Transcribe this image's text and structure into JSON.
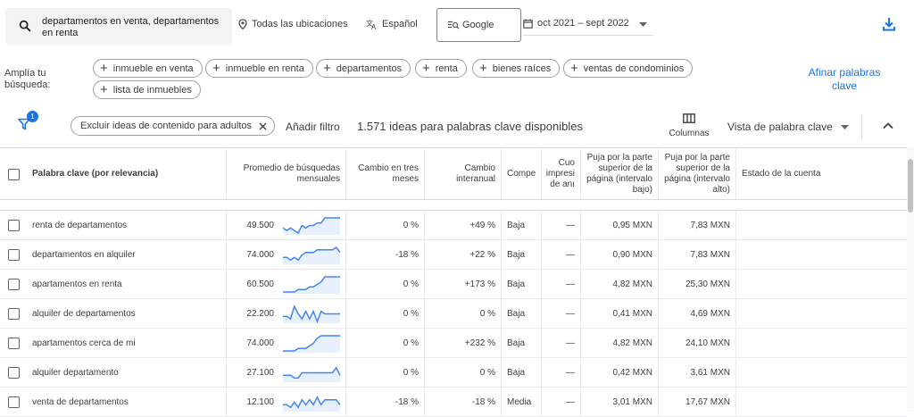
{
  "top": {
    "search_text": "departamentos en venta, departamentos en renta",
    "location": "Todas las ubicaciones",
    "language": "Español",
    "network": "Google",
    "date_range": "oct 2021 – sept 2022"
  },
  "broaden": {
    "label": "Amplía tu búsqueda:",
    "chips": [
      "inmueble en venta",
      "inmueble en renta",
      "departamentos",
      "renta",
      "bienes raíces",
      "ventas de condominios",
      "lista de inmuebles"
    ],
    "refine": "Afinar palabras clave"
  },
  "filterbar": {
    "badge": "1",
    "exclude_chip": "Excluir ideas de contenido para adultos",
    "add_filter": "Añadir filtro",
    "ideas_count": "1.571 ideas para palabras clave disponibles",
    "columns": "Columnas",
    "view": "Vista de palabra clave"
  },
  "table": {
    "headers": {
      "keyword": "Palabra clave (por relevancia)",
      "avg": "Promedio de búsquedas mensuales",
      "three": "Cambio en tres meses",
      "yoy": "Cambio interanual",
      "comp": "Compe",
      "share": "Cuo impresi de anı",
      "low": "Puja por la parte superior de la página (intervalo bajo)",
      "high": "Puja por la parte superior de la página (intervalo alto)",
      "status": "Estado de la cuenta"
    },
    "rows": [
      {
        "keyword": "renta de departamentos",
        "avg": "49.500",
        "three": "0 %",
        "yoy": "+49 %",
        "comp": "Baja",
        "share": "—",
        "low": "0,95 MXN",
        "high": "7,83 MXN",
        "trend": [
          2,
          1,
          2,
          1,
          0,
          3,
          2,
          3,
          3,
          4,
          4,
          6,
          6,
          6,
          6,
          6
        ]
      },
      {
        "keyword": "departamentos en alquiler",
        "avg": "74.000",
        "three": "-18 %",
        "yoy": "+22 %",
        "comp": "Baja",
        "share": "—",
        "low": "0,90 MXN",
        "high": "7,83 MXN",
        "trend": [
          2,
          2,
          1,
          2,
          1,
          3,
          4,
          4,
          4,
          5,
          5,
          5,
          5,
          5,
          6,
          4
        ]
      },
      {
        "keyword": "apartamentos en renta",
        "avg": "60.500",
        "three": "0 %",
        "yoy": "+173 %",
        "comp": "Baja",
        "share": "—",
        "low": "4,82 MXN",
        "high": "25,30 MXN",
        "trend": [
          0,
          0,
          0,
          0,
          1,
          1,
          1,
          2,
          2,
          3,
          4,
          6,
          6,
          6,
          6,
          6
        ]
      },
      {
        "keyword": "alquiler de departamentos",
        "avg": "22.200",
        "three": "0 %",
        "yoy": "0 %",
        "comp": "Baja",
        "share": "—",
        "low": "0,41 MXN",
        "high": "4,69 MXN",
        "trend": [
          2,
          2,
          1,
          6,
          3,
          1,
          4,
          1,
          4,
          0,
          4,
          3,
          3,
          3,
          3,
          3
        ]
      },
      {
        "keyword": "apartamentos cerca de mi",
        "avg": "74.000",
        "three": "0 %",
        "yoy": "+232 %",
        "comp": "Baja",
        "share": "—",
        "low": "4,82 MXN",
        "high": "24,10 MXN",
        "trend": [
          0,
          0,
          0,
          0,
          1,
          1,
          1,
          2,
          3,
          5,
          6,
          6,
          6,
          6,
          6,
          6
        ]
      },
      {
        "keyword": "alquiler departamento",
        "avg": "27.100",
        "three": "0 %",
        "yoy": "0 %",
        "comp": "Baja",
        "share": "—",
        "low": "0,42 MXN",
        "high": "3,61 MXN",
        "trend": [
          2,
          2,
          2,
          1,
          1,
          3,
          3,
          3,
          3,
          3,
          3,
          3,
          3,
          3,
          5,
          2
        ]
      },
      {
        "keyword": "venta de departamentos",
        "avg": "12.100",
        "three": "-18 %",
        "yoy": "-18 %",
        "comp": "Media",
        "share": "—",
        "low": "3,01 MXN",
        "high": "17,67 MXN",
        "trend": [
          2,
          2,
          1,
          3,
          1,
          4,
          2,
          4,
          2,
          5,
          2,
          4,
          4,
          4,
          4,
          2
        ]
      }
    ]
  },
  "colors": {
    "accent": "#1a73e8",
    "spark": "#4285f4",
    "spark_fill": "#e8f0fe"
  }
}
